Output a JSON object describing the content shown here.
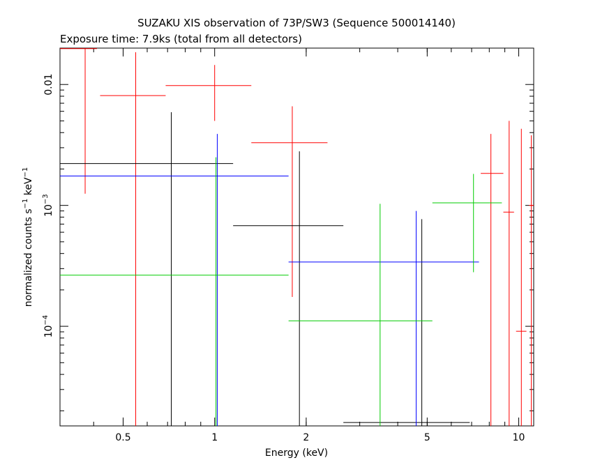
{
  "chart_data": {
    "type": "scatter",
    "title": "SUZAKU XIS observation of 73P/SW3 (Sequence 500014140)",
    "subtitle": "Exposure time: 7.9ks (total from all detectors)",
    "xlabel": "Energy (keV)",
    "ylabel": {
      "prefix": "normalized counts s",
      "exp1": "−1",
      "mid": " keV",
      "exp2": "−1"
    },
    "xscale": "log",
    "yscale": "log",
    "xlim": [
      0.31,
      11.2
    ],
    "ylim": [
      1.5e-05,
      0.02
    ],
    "x_ticks": [
      {
        "value": 0.5,
        "label": "0.5"
      },
      {
        "value": 1,
        "label": "1"
      },
      {
        "value": 2,
        "label": "2"
      },
      {
        "value": 5,
        "label": "5"
      },
      {
        "value": 10,
        "label": "10"
      }
    ],
    "y_ticks": [
      {
        "value": 0.01,
        "label": "0.01",
        "base": "",
        "exp": ""
      },
      {
        "value": 0.001,
        "label": "",
        "base": "10",
        "exp": "−3"
      },
      {
        "value": 0.0001,
        "label": "",
        "base": "10",
        "exp": "−4"
      }
    ],
    "grid": false,
    "series": [
      {
        "color": "#ff0000",
        "points": [
          {
            "x": 0.375,
            "xlo": 0.31,
            "xhi": 0.41,
            "y": 0.0198,
            "ylo": 0.00125,
            "yhi": 0.0198
          },
          {
            "x": 0.55,
            "xlo": 0.42,
            "xhi": 0.69,
            "y": 0.0081,
            "ylo": 1.5e-05,
            "yhi": 0.0185
          },
          {
            "x": 1.0,
            "xlo": 0.69,
            "xhi": 1.32,
            "y": 0.0098,
            "ylo": 0.005,
            "yhi": 0.0145
          },
          {
            "x": 1.8,
            "xlo": 1.32,
            "xhi": 2.35,
            "y": 0.0033,
            "ylo": 0.000175,
            "yhi": 0.0066
          },
          {
            "x": 8.1,
            "xlo": 7.5,
            "xhi": 8.9,
            "y": 0.00184,
            "ylo": 1.5e-05,
            "yhi": 0.0039
          },
          {
            "x": 9.3,
            "xlo": 8.9,
            "xhi": 9.65,
            "y": 0.00088,
            "ylo": 1.5e-05,
            "yhi": 0.005
          },
          {
            "x": 10.2,
            "xlo": 9.8,
            "xhi": 10.6,
            "y": 9.1e-05,
            "ylo": 1.5e-05,
            "yhi": 0.0043
          },
          {
            "x": 11.0,
            "xlo": 10.8,
            "xhi": 11.2,
            "y": 0.001,
            "ylo": 1.5e-05,
            "yhi": 0.0038
          }
        ]
      },
      {
        "color": "#000000",
        "points": [
          {
            "x": 0.72,
            "xlo": 0.31,
            "xhi": 1.15,
            "y": 0.00222,
            "ylo": 1.5e-05,
            "yhi": 0.0059
          },
          {
            "x": 1.9,
            "xlo": 1.15,
            "xhi": 2.65,
            "y": 0.00068,
            "ylo": 1.5e-05,
            "yhi": 0.0028
          },
          {
            "x": 4.8,
            "xlo": 2.65,
            "xhi": 6.9,
            "y": 1.6e-05,
            "ylo": 1.5e-05,
            "yhi": 0.00077
          }
        ]
      },
      {
        "color": "#0000ff",
        "points": [
          {
            "x": 1.02,
            "xlo": 0.31,
            "xhi": 1.75,
            "y": 0.00175,
            "ylo": 1.5e-05,
            "yhi": 0.0039
          },
          {
            "x": 4.6,
            "xlo": 1.75,
            "xhi": 7.4,
            "y": 0.00034,
            "ylo": 1.5e-05,
            "yhi": 0.0009
          }
        ]
      },
      {
        "color": "#00cc00",
        "points": [
          {
            "x": 1.01,
            "xlo": 0.31,
            "xhi": 1.75,
            "y": 0.000265,
            "ylo": 1.5e-05,
            "yhi": 0.0025
          },
          {
            "x": 3.5,
            "xlo": 1.75,
            "xhi": 5.2,
            "y": 0.000111,
            "ylo": 1.5e-05,
            "yhi": 0.00103
          },
          {
            "x": 7.1,
            "xlo": 5.2,
            "xhi": 8.8,
            "y": 0.00105,
            "ylo": 0.00028,
            "yhi": 0.00182
          }
        ]
      }
    ]
  }
}
